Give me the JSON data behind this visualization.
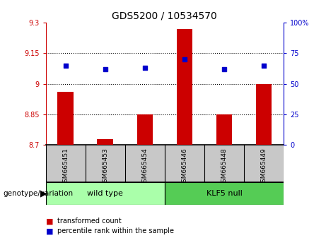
{
  "title": "GDS5200 / 10534570",
  "categories": [
    "GSM665451",
    "GSM665453",
    "GSM665454",
    "GSM665446",
    "GSM665448",
    "GSM665449"
  ],
  "bar_values": [
    8.96,
    8.73,
    8.85,
    9.27,
    8.85,
    9.0
  ],
  "dot_values_pct": [
    65,
    62,
    63,
    70,
    62,
    65
  ],
  "ylim_left": [
    8.7,
    9.3
  ],
  "ylim_right": [
    0,
    100
  ],
  "yticks_left": [
    8.7,
    8.85,
    9.0,
    9.15,
    9.3
  ],
  "ytick_labels_left": [
    "8.7",
    "8.85",
    "9",
    "9.15",
    "9.3"
  ],
  "yticks_right": [
    0,
    25,
    50,
    75,
    100
  ],
  "ytick_labels_right": [
    "0",
    "25",
    "50",
    "75",
    "100%"
  ],
  "hlines": [
    8.85,
    9.0,
    9.15
  ],
  "bar_color": "#cc0000",
  "dot_color": "#0000cc",
  "wild_type_label": "wild type",
  "klf5_null_label": "KLF5 null",
  "genotype_label": "genotype/variation",
  "legend_bar_label": "transformed count",
  "legend_dot_label": "percentile rank within the sample",
  "group_bg_color": "#c8c8c8",
  "wild_type_color": "#aaffaa",
  "klf5_null_color": "#55cc55",
  "bar_base": 8.7,
  "bar_width": 0.4
}
